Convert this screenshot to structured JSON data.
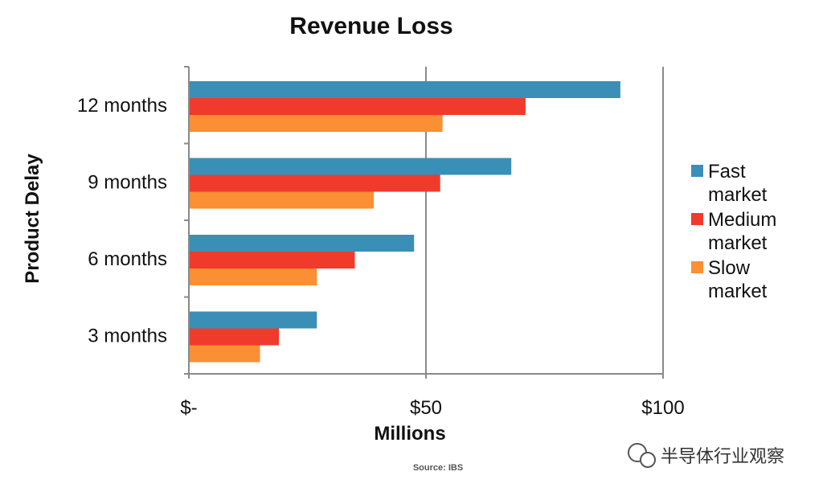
{
  "chart_data": {
    "type": "bar",
    "orientation": "horizontal",
    "title": "Revenue Loss",
    "xlabel": "Millions",
    "ylabel": "Product Delay",
    "categories": [
      "12 months",
      "9 months",
      "6 months",
      "3 months"
    ],
    "series": [
      {
        "name": "Fast market",
        "legend_lines": [
          "Fast",
          "market"
        ],
        "color": "#3a8fb7",
        "values": [
          91,
          68,
          47.5,
          27
        ]
      },
      {
        "name": "Medium market",
        "legend_lines": [
          "Medium",
          "market"
        ],
        "color": "#f03a2c",
        "values": [
          71,
          53,
          35,
          19
        ]
      },
      {
        "name": "Slow market",
        "legend_lines": [
          "Slow",
          "market"
        ],
        "color": "#fb8f33",
        "values": [
          53.5,
          39,
          27,
          15
        ]
      }
    ],
    "xlim": [
      0,
      100
    ],
    "xticks": [
      0,
      50,
      100
    ],
    "xtick_labels": [
      "$-",
      "$50",
      "$100"
    ],
    "grid": "vertical",
    "legend_position": "right"
  },
  "source_note": "Source: IBS",
  "watermark_text": "半导体行业观察"
}
